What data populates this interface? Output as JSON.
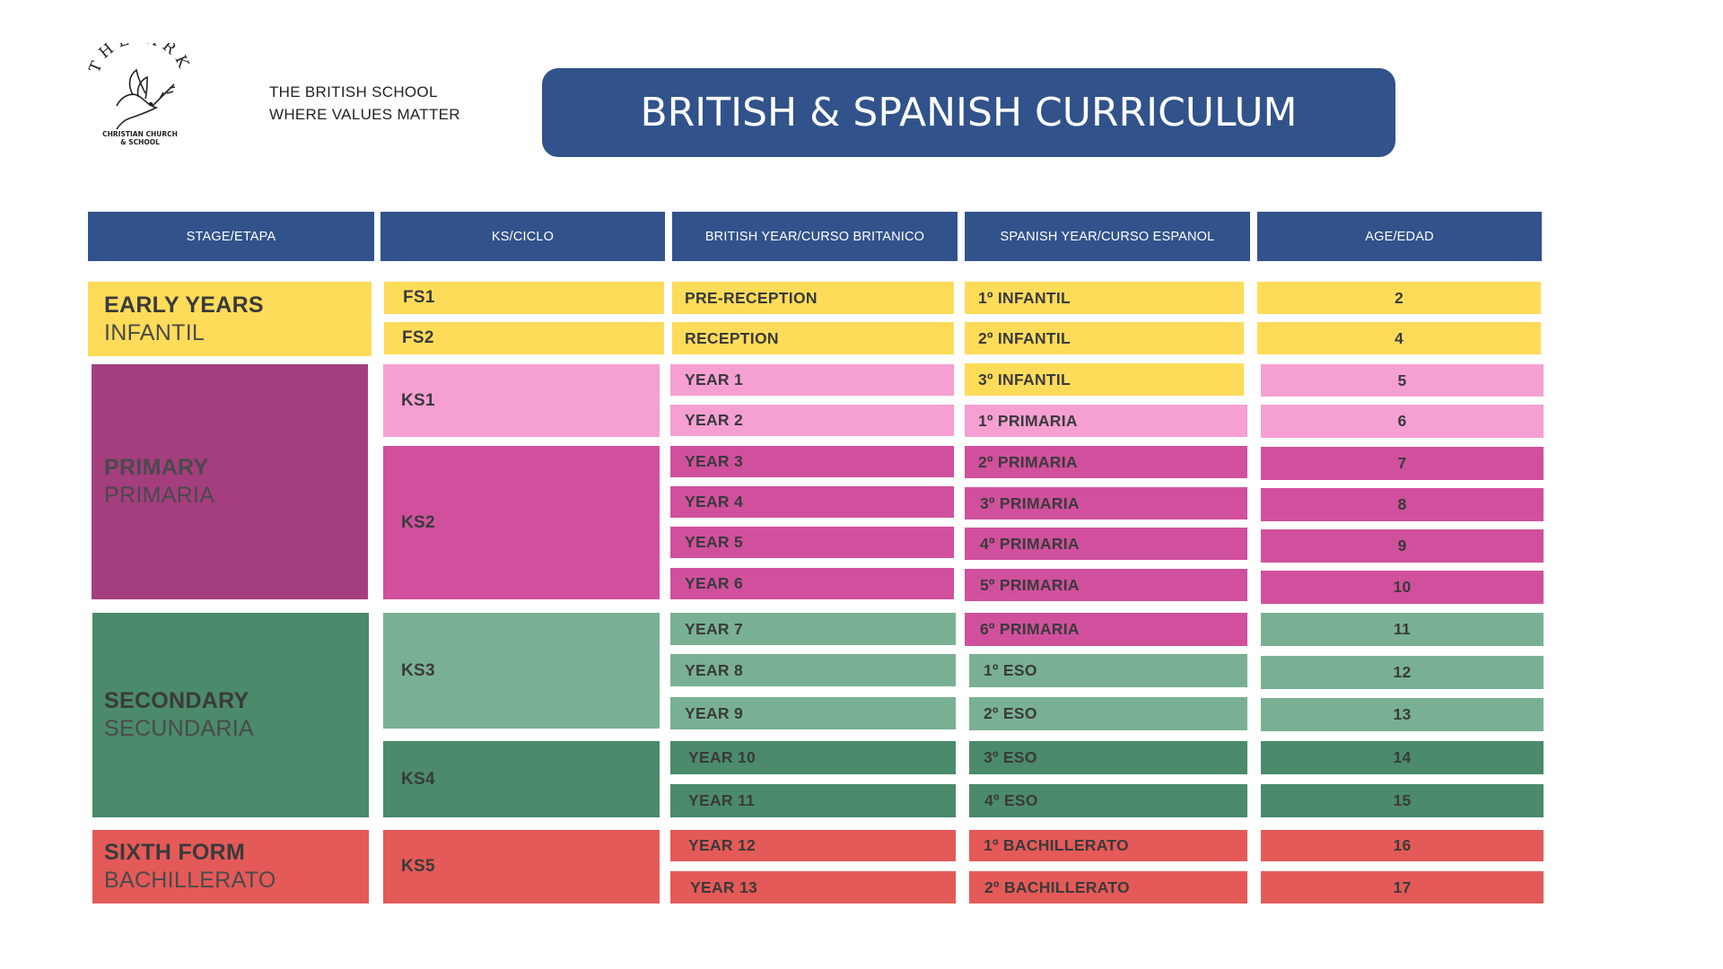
{
  "brand": {
    "logo_arc": "THE ARK",
    "logo_sub1": "CHRISTIAN CHURCH",
    "logo_sub2": "& SCHOOL",
    "tagline_line1": "THE BRITISH SCHOOL",
    "tagline_line2": "WHERE VALUES MATTER"
  },
  "title": "BRITISH & SPANISH CURRICULUM",
  "headers": {
    "stage": "STAGE/ETAPA",
    "ks": "KS/CICLO",
    "british": "BRITISH YEAR/CURSO BRITANICO",
    "spanish": "SPANISH YEAR/CURSO ESPANOL",
    "age": "AGE/EDAD"
  },
  "stages": [
    {
      "name": "EARLY YEARS",
      "sub": "INFANTIL",
      "color": "#fedc5a"
    },
    {
      "name": "PRIMARY",
      "sub": "PRIMARIA",
      "color": "#a43e7f"
    },
    {
      "name": "SECONDARY",
      "sub": "SECUNDARIA",
      "color": "#4b8a6b"
    },
    {
      "name": "SIXTH FORM",
      "sub": "BACHILLERATO",
      "color": "#e45a58"
    }
  ],
  "key_stages": [
    "FS1",
    "FS2",
    "KS1",
    "KS2",
    "KS3",
    "KS4",
    "KS5"
  ],
  "british_years": [
    "PRE-RECEPTION",
    "RECEPTION",
    "YEAR 1",
    "YEAR 2",
    "YEAR 3",
    "YEAR 4",
    "YEAR 5",
    "YEAR 6",
    "YEAR 7",
    "YEAR 8",
    "YEAR 9",
    "YEAR 10",
    "YEAR 11",
    "YEAR 12",
    "YEAR 13"
  ],
  "spanish_years": [
    "1º INFANTIL",
    "2º INFANTIL",
    "3º INFANTIL",
    "1º PRIMARIA",
    "2º PRIMARIA",
    "3º PRIMARIA",
    "4º PRIMARIA",
    "5º PRIMARIA",
    "6º PRIMARIA",
    "1º ESO",
    "2º ESO",
    "3º ESO",
    "4º ESO",
    "1º BACHILLERATO",
    "2º BACHILLERATO"
  ],
  "ages": [
    "2",
    "4",
    "5",
    "6",
    "7",
    "8",
    "9",
    "10",
    "11",
    "12",
    "13",
    "14",
    "15",
    "16",
    "17"
  ],
  "colors": {
    "navy": "#31528a",
    "yellow": "#fedc5a",
    "pink": "#f59fd3",
    "magenta": "#d0509d",
    "plum": "#a43e7f",
    "sage": "#79b093",
    "green": "#4b8a6b",
    "red": "#e45a58"
  }
}
